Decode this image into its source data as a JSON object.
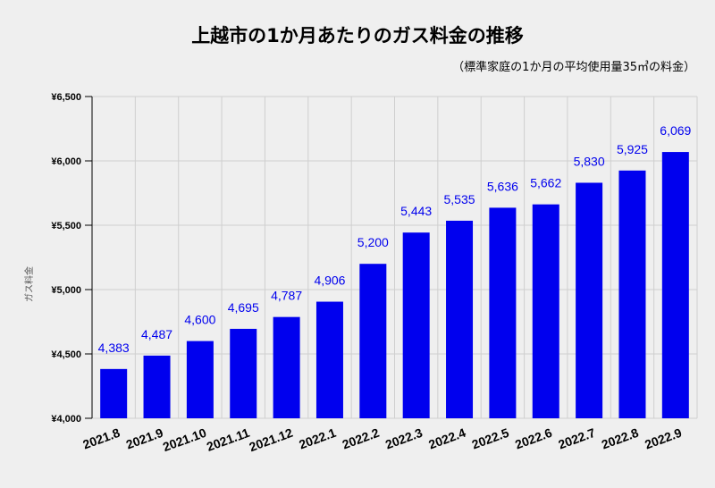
{
  "chart_data": {
    "type": "bar",
    "title": "上越市の1か月あたりのガス料金の推移",
    "subtitle": "（標準家庭の1か月の平均使用量35㎥の料金）",
    "ylabel": "ガス料金",
    "xlabel": "",
    "ylim": [
      4000,
      6500
    ],
    "yticks": [
      4000,
      4500,
      5000,
      5500,
      6000,
      6500
    ],
    "ytick_labels": [
      "¥4,000",
      "¥4,500",
      "¥5,000",
      "¥5,500",
      "¥6,000",
      "¥6,500"
    ],
    "grid": true,
    "legend": "none",
    "bar_color": "#0000ee",
    "label_color": "#0000ee",
    "categories": [
      "2021.8",
      "2021.9",
      "2021.10",
      "2021.11",
      "2021.12",
      "2022.1",
      "2022.2",
      "2022.3",
      "2022.4",
      "2022.5",
      "2022.6",
      "2022.7",
      "2022.8",
      "2022.9"
    ],
    "values": [
      4383,
      4487,
      4600,
      4695,
      4787,
      4906,
      5200,
      5443,
      5535,
      5636,
      5662,
      5830,
      5925,
      6069
    ],
    "value_labels": [
      "4,383",
      "4,487",
      "4,600",
      "4,695",
      "4,787",
      "4,906",
      "5,200",
      "5,443",
      "5,535",
      "5,636",
      "5,662",
      "5,830",
      "5,925",
      "6,069"
    ]
  }
}
